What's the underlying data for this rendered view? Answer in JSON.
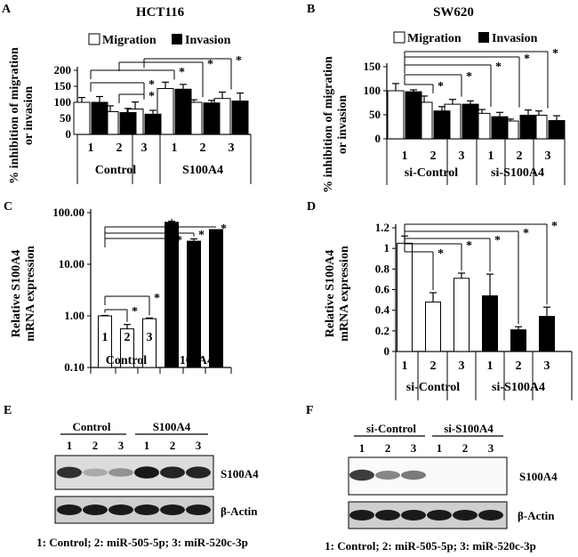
{
  "chart_data": [
    {
      "id": "A",
      "type": "bar",
      "panel_label": "A",
      "title": "HCT116",
      "ylabel_lines": [
        "% inhibition of migration",
        "or invasion"
      ],
      "ylim": [
        0,
        200
      ],
      "yticks": [
        "0",
        "50",
        "100",
        "150",
        "200"
      ],
      "scale": "linear",
      "categories": [
        "1",
        "2",
        "3",
        "1",
        "2",
        "3"
      ],
      "groups": [
        "Control",
        "S100A4"
      ],
      "legend": [
        "Migration",
        "Invasion"
      ],
      "series": [
        {
          "name": "Migration",
          "values": [
            100,
            71,
            79,
            143,
            100,
            112
          ],
          "errors": [
            15,
            18,
            22,
            20,
            8,
            20
          ]
        },
        {
          "name": "Invasion",
          "values": [
            100,
            68,
            63,
            141,
            98,
            104
          ],
          "errors": [
            18,
            13,
            12,
            15,
            8,
            25
          ]
        }
      ],
      "stars": [
        "*",
        "*",
        "*",
        "*",
        "*"
      ]
    },
    {
      "id": "B",
      "type": "bar",
      "panel_label": "B",
      "title": "SW620",
      "ylabel_lines": [
        "% inhibition of migration",
        "or invasion"
      ],
      "ylim": [
        0,
        150
      ],
      "yticks": [
        "0",
        "50",
        "100",
        "150"
      ],
      "scale": "linear",
      "categories": [
        "1",
        "2",
        "3",
        "1",
        "2",
        "3"
      ],
      "groups": [
        "si-Control",
        "si-S100A4"
      ],
      "legend": [
        "Migration",
        "Invasion"
      ],
      "series": [
        {
          "name": "Migration",
          "values": [
            100,
            76,
            72,
            53,
            37,
            49
          ],
          "errors": [
            15,
            13,
            10,
            8,
            4,
            9
          ]
        },
        {
          "name": "Invasion",
          "values": [
            98,
            58,
            72,
            46,
            49,
            38
          ],
          "errors": [
            4,
            9,
            7,
            9,
            11,
            10
          ]
        }
      ],
      "stars": [
        "*",
        "*",
        "*",
        "*",
        "*"
      ]
    },
    {
      "id": "C",
      "type": "bar",
      "panel_label": "C",
      "ylabel_lines": [
        "Relative S100A4",
        "mRNA expression"
      ],
      "ylim": [
        0.1,
        100
      ],
      "yticks": [
        "0.10",
        "1.00",
        "10.00",
        "100.00"
      ],
      "scale": "log",
      "categories": [
        "1",
        "2",
        "3",
        "1",
        "2",
        "3"
      ],
      "groups": [
        "Control",
        "S100A4"
      ],
      "series": [
        {
          "name": "S100A4 mRNA",
          "values": [
            1.0,
            0.56,
            0.88,
            65,
            28,
            47
          ],
          "errors": [
            0.02,
            0.12,
            0.03,
            3,
            3,
            0
          ]
        }
      ],
      "stars": [
        "*",
        "*",
        "*",
        "*",
        "*"
      ]
    },
    {
      "id": "D",
      "type": "bar",
      "panel_label": "D",
      "ylabel_lines": [
        "Relative S100A4",
        "mRNA expression"
      ],
      "ylim": [
        0,
        1.2
      ],
      "yticks": [
        "0",
        "0.2",
        "0.4",
        "0.6",
        "0.8",
        "1",
        "1.2"
      ],
      "scale": "linear",
      "categories": [
        "1",
        "2",
        "3",
        "1",
        "2",
        "3"
      ],
      "groups": [
        "si-Control",
        "si-S100A4"
      ],
      "series": [
        {
          "name": "S100A4 mRNA",
          "values": [
            1.05,
            0.48,
            0.71,
            0.54,
            0.21,
            0.34
          ],
          "errors": [
            0.07,
            0.09,
            0.05,
            0.21,
            0.03,
            0.09
          ]
        }
      ],
      "stars": [
        "*",
        "*",
        "*",
        "*",
        "*"
      ]
    }
  ],
  "blots": {
    "E": {
      "panel_label": "E",
      "group_labels": [
        "Control",
        "S100A4"
      ],
      "lane_numbers": [
        "1",
        "2",
        "3",
        "1",
        "2",
        "3"
      ],
      "band_labels": [
        "S100A4",
        "β-Actin"
      ],
      "s100a4_intensity": [
        0.85,
        0.35,
        0.45,
        0.95,
        0.9,
        0.9
      ],
      "caption": "1: Control;  2: miR-505-5p;  3: miR-520c-3p"
    },
    "F": {
      "panel_label": "F",
      "group_labels": [
        "si-Control",
        "si-S100A4"
      ],
      "lane_numbers": [
        "1",
        "2",
        "3",
        "1",
        "2",
        "3"
      ],
      "band_labels": [
        "S100A4",
        "β-Actin"
      ],
      "s100a4_intensity": [
        0.8,
        0.5,
        0.55,
        0,
        0,
        0
      ],
      "caption": "1: Control;  2: miR-505-5p;  3: miR-520c-3p"
    }
  }
}
